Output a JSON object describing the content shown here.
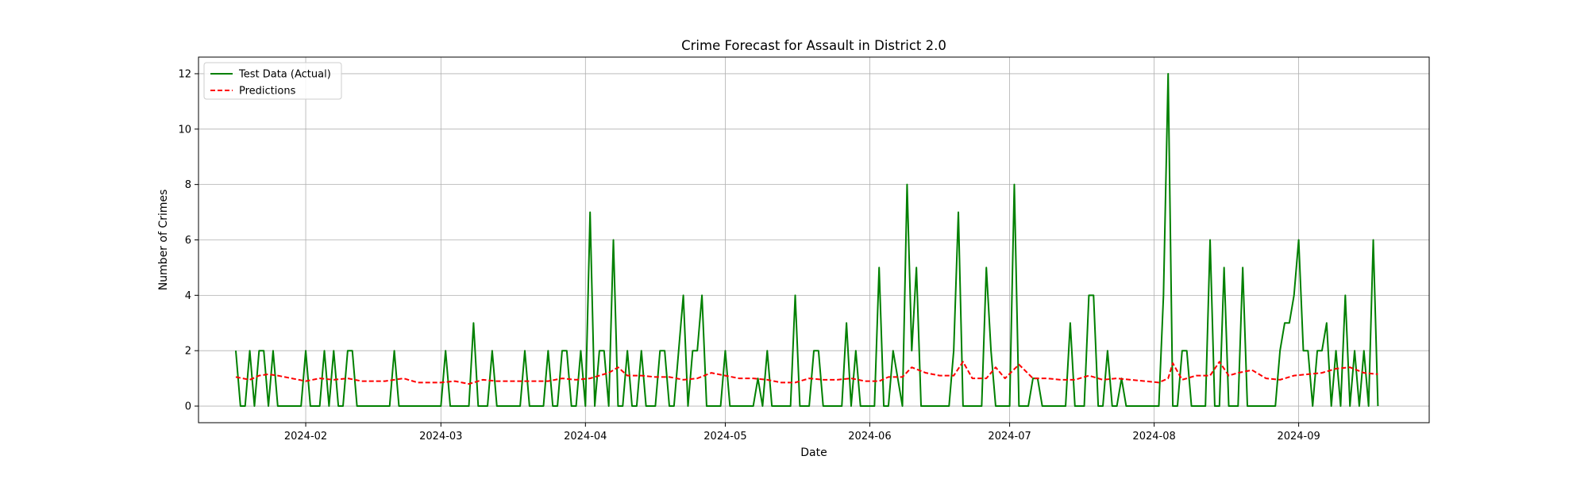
{
  "chart_data": {
    "type": "line",
    "title": "Crime Forecast for Assault in District 2.0",
    "xlabel": "Date",
    "ylabel": "Number of Crimes",
    "grid": true,
    "legend_position": "top-left",
    "x_start": "2024-01-17",
    "x_end": "2024-09-18",
    "xlim": [
      "2024-01-09",
      "2024-09-29"
    ],
    "ylim": [
      -0.6,
      12.6
    ],
    "x_ticks": [
      "2024-02",
      "2024-03",
      "2024-04",
      "2024-05",
      "2024-06",
      "2024-07",
      "2024-08",
      "2024-09"
    ],
    "y_ticks": [
      0,
      2,
      4,
      6,
      8,
      10,
      12
    ],
    "series": [
      {
        "name": "Test Data (Actual)",
        "color": "#008000",
        "style": "solid",
        "points": [
          [
            "2024-01-17",
            2
          ],
          [
            "2024-01-18",
            0
          ],
          [
            "2024-01-19",
            0
          ],
          [
            "2024-01-20",
            2
          ],
          [
            "2024-01-21",
            0
          ],
          [
            "2024-01-22",
            2
          ],
          [
            "2024-01-23",
            2
          ],
          [
            "2024-01-24",
            0
          ],
          [
            "2024-01-25",
            2
          ],
          [
            "2024-01-26",
            0
          ],
          [
            "2024-01-31",
            0
          ],
          [
            "2024-02-01",
            2
          ],
          [
            "2024-02-02",
            0
          ],
          [
            "2024-02-04",
            0
          ],
          [
            "2024-02-05",
            2
          ],
          [
            "2024-02-06",
            0
          ],
          [
            "2024-02-07",
            2
          ],
          [
            "2024-02-08",
            0
          ],
          [
            "2024-02-09",
            0
          ],
          [
            "2024-02-10",
            2
          ],
          [
            "2024-02-11",
            2
          ],
          [
            "2024-02-12",
            0
          ],
          [
            "2024-02-19",
            0
          ],
          [
            "2024-02-20",
            2
          ],
          [
            "2024-02-21",
            0
          ],
          [
            "2024-03-01",
            0
          ],
          [
            "2024-03-02",
            2
          ],
          [
            "2024-03-03",
            0
          ],
          [
            "2024-03-07",
            0
          ],
          [
            "2024-03-08",
            3
          ],
          [
            "2024-03-09",
            0
          ],
          [
            "2024-03-11",
            0
          ],
          [
            "2024-03-12",
            2
          ],
          [
            "2024-03-13",
            0
          ],
          [
            "2024-03-18",
            0
          ],
          [
            "2024-03-19",
            2
          ],
          [
            "2024-03-20",
            0
          ],
          [
            "2024-03-23",
            0
          ],
          [
            "2024-03-24",
            2
          ],
          [
            "2024-03-25",
            0
          ],
          [
            "2024-03-26",
            0
          ],
          [
            "2024-03-27",
            2
          ],
          [
            "2024-03-28",
            2
          ],
          [
            "2024-03-29",
            0
          ],
          [
            "2024-03-30",
            0
          ],
          [
            "2024-03-31",
            2
          ],
          [
            "2024-04-01",
            0
          ],
          [
            "2024-04-02",
            7
          ],
          [
            "2024-04-03",
            0
          ],
          [
            "2024-04-04",
            2
          ],
          [
            "2024-04-05",
            2
          ],
          [
            "2024-04-06",
            0
          ],
          [
            "2024-04-07",
            6
          ],
          [
            "2024-04-08",
            0
          ],
          [
            "2024-04-09",
            0
          ],
          [
            "2024-04-10",
            2
          ],
          [
            "2024-04-11",
            0
          ],
          [
            "2024-04-12",
            0
          ],
          [
            "2024-04-13",
            2
          ],
          [
            "2024-04-14",
            0
          ],
          [
            "2024-04-15",
            0
          ],
          [
            "2024-04-16",
            0
          ],
          [
            "2024-04-17",
            2
          ],
          [
            "2024-04-18",
            2
          ],
          [
            "2024-04-19",
            0
          ],
          [
            "2024-04-20",
            0
          ],
          [
            "2024-04-21",
            2
          ],
          [
            "2024-04-22",
            4
          ],
          [
            "2024-04-23",
            0
          ],
          [
            "2024-04-24",
            2
          ],
          [
            "2024-04-25",
            2
          ],
          [
            "2024-04-26",
            4
          ],
          [
            "2024-04-27",
            0
          ],
          [
            "2024-04-30",
            0
          ],
          [
            "2024-05-01",
            2
          ],
          [
            "2024-05-02",
            0
          ],
          [
            "2024-05-07",
            0
          ],
          [
            "2024-05-08",
            1
          ],
          [
            "2024-05-09",
            0
          ],
          [
            "2024-05-10",
            2
          ],
          [
            "2024-05-11",
            0
          ],
          [
            "2024-05-15",
            0
          ],
          [
            "2024-05-16",
            4
          ],
          [
            "2024-05-17",
            0
          ],
          [
            "2024-05-19",
            0
          ],
          [
            "2024-05-20",
            2
          ],
          [
            "2024-05-21",
            2
          ],
          [
            "2024-05-22",
            0
          ],
          [
            "2024-05-26",
            0
          ],
          [
            "2024-05-27",
            3
          ],
          [
            "2024-05-28",
            0
          ],
          [
            "2024-05-29",
            2
          ],
          [
            "2024-05-30",
            0
          ],
          [
            "2024-06-02",
            0
          ],
          [
            "2024-06-03",
            5
          ],
          [
            "2024-06-04",
            0
          ],
          [
            "2024-06-05",
            0
          ],
          [
            "2024-06-06",
            2
          ],
          [
            "2024-06-07",
            1
          ],
          [
            "2024-06-08",
            0
          ],
          [
            "2024-06-09",
            8
          ],
          [
            "2024-06-10",
            2
          ],
          [
            "2024-06-11",
            5
          ],
          [
            "2024-06-12",
            0
          ],
          [
            "2024-06-18",
            0
          ],
          [
            "2024-06-19",
            2
          ],
          [
            "2024-06-20",
            7
          ],
          [
            "2024-06-21",
            0
          ],
          [
            "2024-06-25",
            0
          ],
          [
            "2024-06-26",
            5
          ],
          [
            "2024-06-27",
            2
          ],
          [
            "2024-06-28",
            0
          ],
          [
            "2024-07-01",
            0
          ],
          [
            "2024-07-02",
            8
          ],
          [
            "2024-07-03",
            0
          ],
          [
            "2024-07-05",
            0
          ],
          [
            "2024-07-06",
            1
          ],
          [
            "2024-07-07",
            1
          ],
          [
            "2024-07-08",
            0
          ],
          [
            "2024-07-13",
            0
          ],
          [
            "2024-07-14",
            3
          ],
          [
            "2024-07-15",
            0
          ],
          [
            "2024-07-17",
            0
          ],
          [
            "2024-07-18",
            4
          ],
          [
            "2024-07-19",
            4
          ],
          [
            "2024-07-20",
            0
          ],
          [
            "2024-07-21",
            0
          ],
          [
            "2024-07-22",
            2
          ],
          [
            "2024-07-23",
            0
          ],
          [
            "2024-07-24",
            0
          ],
          [
            "2024-07-25",
            1
          ],
          [
            "2024-07-26",
            0
          ],
          [
            "2024-08-02",
            0
          ],
          [
            "2024-08-03",
            4
          ],
          [
            "2024-08-04",
            12
          ],
          [
            "2024-08-05",
            0
          ],
          [
            "2024-08-06",
            0
          ],
          [
            "2024-08-07",
            2
          ],
          [
            "2024-08-08",
            2
          ],
          [
            "2024-08-09",
            0
          ],
          [
            "2024-08-12",
            0
          ],
          [
            "2024-08-13",
            6
          ],
          [
            "2024-08-14",
            0
          ],
          [
            "2024-08-15",
            0
          ],
          [
            "2024-08-16",
            5
          ],
          [
            "2024-08-17",
            0
          ],
          [
            "2024-08-18",
            0
          ],
          [
            "2024-08-19",
            0
          ],
          [
            "2024-08-20",
            5
          ],
          [
            "2024-08-21",
            0
          ],
          [
            "2024-08-27",
            0
          ],
          [
            "2024-08-28",
            2
          ],
          [
            "2024-08-29",
            3
          ],
          [
            "2024-08-30",
            3
          ],
          [
            "2024-08-31",
            4
          ],
          [
            "2024-09-01",
            6
          ],
          [
            "2024-09-02",
            2
          ],
          [
            "2024-09-03",
            2
          ],
          [
            "2024-09-04",
            0
          ],
          [
            "2024-09-05",
            2
          ],
          [
            "2024-09-06",
            2
          ],
          [
            "2024-09-07",
            3
          ],
          [
            "2024-09-08",
            0
          ],
          [
            "2024-09-09",
            2
          ],
          [
            "2024-09-10",
            0
          ],
          [
            "2024-09-11",
            4
          ],
          [
            "2024-09-12",
            0
          ],
          [
            "2024-09-13",
            2
          ],
          [
            "2024-09-14",
            0
          ],
          [
            "2024-09-15",
            2
          ],
          [
            "2024-09-16",
            0
          ],
          [
            "2024-09-17",
            6
          ],
          [
            "2024-09-18",
            0
          ]
        ]
      },
      {
        "name": "Predictions",
        "color": "#ff0000",
        "style": "dashed",
        "points": [
          [
            "2024-01-17",
            1.05
          ],
          [
            "2024-01-20",
            0.95
          ],
          [
            "2024-01-22",
            1.1
          ],
          [
            "2024-01-24",
            1.15
          ],
          [
            "2024-01-26",
            1.1
          ],
          [
            "2024-01-29",
            1.0
          ],
          [
            "2024-02-01",
            0.9
          ],
          [
            "2024-02-04",
            1.0
          ],
          [
            "2024-02-07",
            0.95
          ],
          [
            "2024-02-10",
            1.0
          ],
          [
            "2024-02-13",
            0.9
          ],
          [
            "2024-02-18",
            0.9
          ],
          [
            "2024-02-22",
            1.0
          ],
          [
            "2024-02-25",
            0.85
          ],
          [
            "2024-03-01",
            0.85
          ],
          [
            "2024-03-04",
            0.9
          ],
          [
            "2024-03-07",
            0.8
          ],
          [
            "2024-03-10",
            0.95
          ],
          [
            "2024-03-13",
            0.9
          ],
          [
            "2024-03-17",
            0.9
          ],
          [
            "2024-03-20",
            0.9
          ],
          [
            "2024-03-24",
            0.9
          ],
          [
            "2024-03-27",
            1.0
          ],
          [
            "2024-03-30",
            0.95
          ],
          [
            "2024-04-02",
            1.0
          ],
          [
            "2024-04-04",
            1.1
          ],
          [
            "2024-04-06",
            1.2
          ],
          [
            "2024-04-08",
            1.4
          ],
          [
            "2024-04-10",
            1.1
          ],
          [
            "2024-04-13",
            1.1
          ],
          [
            "2024-04-16",
            1.05
          ],
          [
            "2024-04-19",
            1.05
          ],
          [
            "2024-04-22",
            0.95
          ],
          [
            "2024-04-25",
            1.0
          ],
          [
            "2024-04-28",
            1.2
          ],
          [
            "2024-05-01",
            1.1
          ],
          [
            "2024-05-04",
            1.0
          ],
          [
            "2024-05-07",
            1.0
          ],
          [
            "2024-05-10",
            0.95
          ],
          [
            "2024-05-13",
            0.85
          ],
          [
            "2024-05-16",
            0.85
          ],
          [
            "2024-05-19",
            1.0
          ],
          [
            "2024-05-22",
            0.95
          ],
          [
            "2024-05-25",
            0.95
          ],
          [
            "2024-05-28",
            1.0
          ],
          [
            "2024-05-31",
            0.9
          ],
          [
            "2024-06-03",
            0.9
          ],
          [
            "2024-06-05",
            1.05
          ],
          [
            "2024-06-08",
            1.05
          ],
          [
            "2024-06-10",
            1.4
          ],
          [
            "2024-06-13",
            1.2
          ],
          [
            "2024-06-16",
            1.1
          ],
          [
            "2024-06-19",
            1.1
          ],
          [
            "2024-06-21",
            1.6
          ],
          [
            "2024-06-23",
            1.0
          ],
          [
            "2024-06-26",
            1.0
          ],
          [
            "2024-06-28",
            1.4
          ],
          [
            "2024-06-30",
            1.0
          ],
          [
            "2024-07-03",
            1.5
          ],
          [
            "2024-07-06",
            1.0
          ],
          [
            "2024-07-09",
            1.0
          ],
          [
            "2024-07-12",
            0.95
          ],
          [
            "2024-07-15",
            0.95
          ],
          [
            "2024-07-18",
            1.1
          ],
          [
            "2024-07-21",
            0.95
          ],
          [
            "2024-07-24",
            1.0
          ],
          [
            "2024-07-27",
            0.95
          ],
          [
            "2024-07-30",
            0.9
          ],
          [
            "2024-08-02",
            0.85
          ],
          [
            "2024-08-04",
            1.0
          ],
          [
            "2024-08-05",
            1.55
          ],
          [
            "2024-08-07",
            0.95
          ],
          [
            "2024-08-10",
            1.1
          ],
          [
            "2024-08-13",
            1.1
          ],
          [
            "2024-08-15",
            1.6
          ],
          [
            "2024-08-17",
            1.1
          ],
          [
            "2024-08-19",
            1.2
          ],
          [
            "2024-08-22",
            1.3
          ],
          [
            "2024-08-25",
            1.0
          ],
          [
            "2024-08-28",
            0.95
          ],
          [
            "2024-08-31",
            1.1
          ],
          [
            "2024-09-03",
            1.15
          ],
          [
            "2024-09-06",
            1.2
          ],
          [
            "2024-09-09",
            1.35
          ],
          [
            "2024-09-12",
            1.4
          ],
          [
            "2024-09-15",
            1.2
          ],
          [
            "2024-09-18",
            1.15
          ]
        ]
      }
    ]
  }
}
